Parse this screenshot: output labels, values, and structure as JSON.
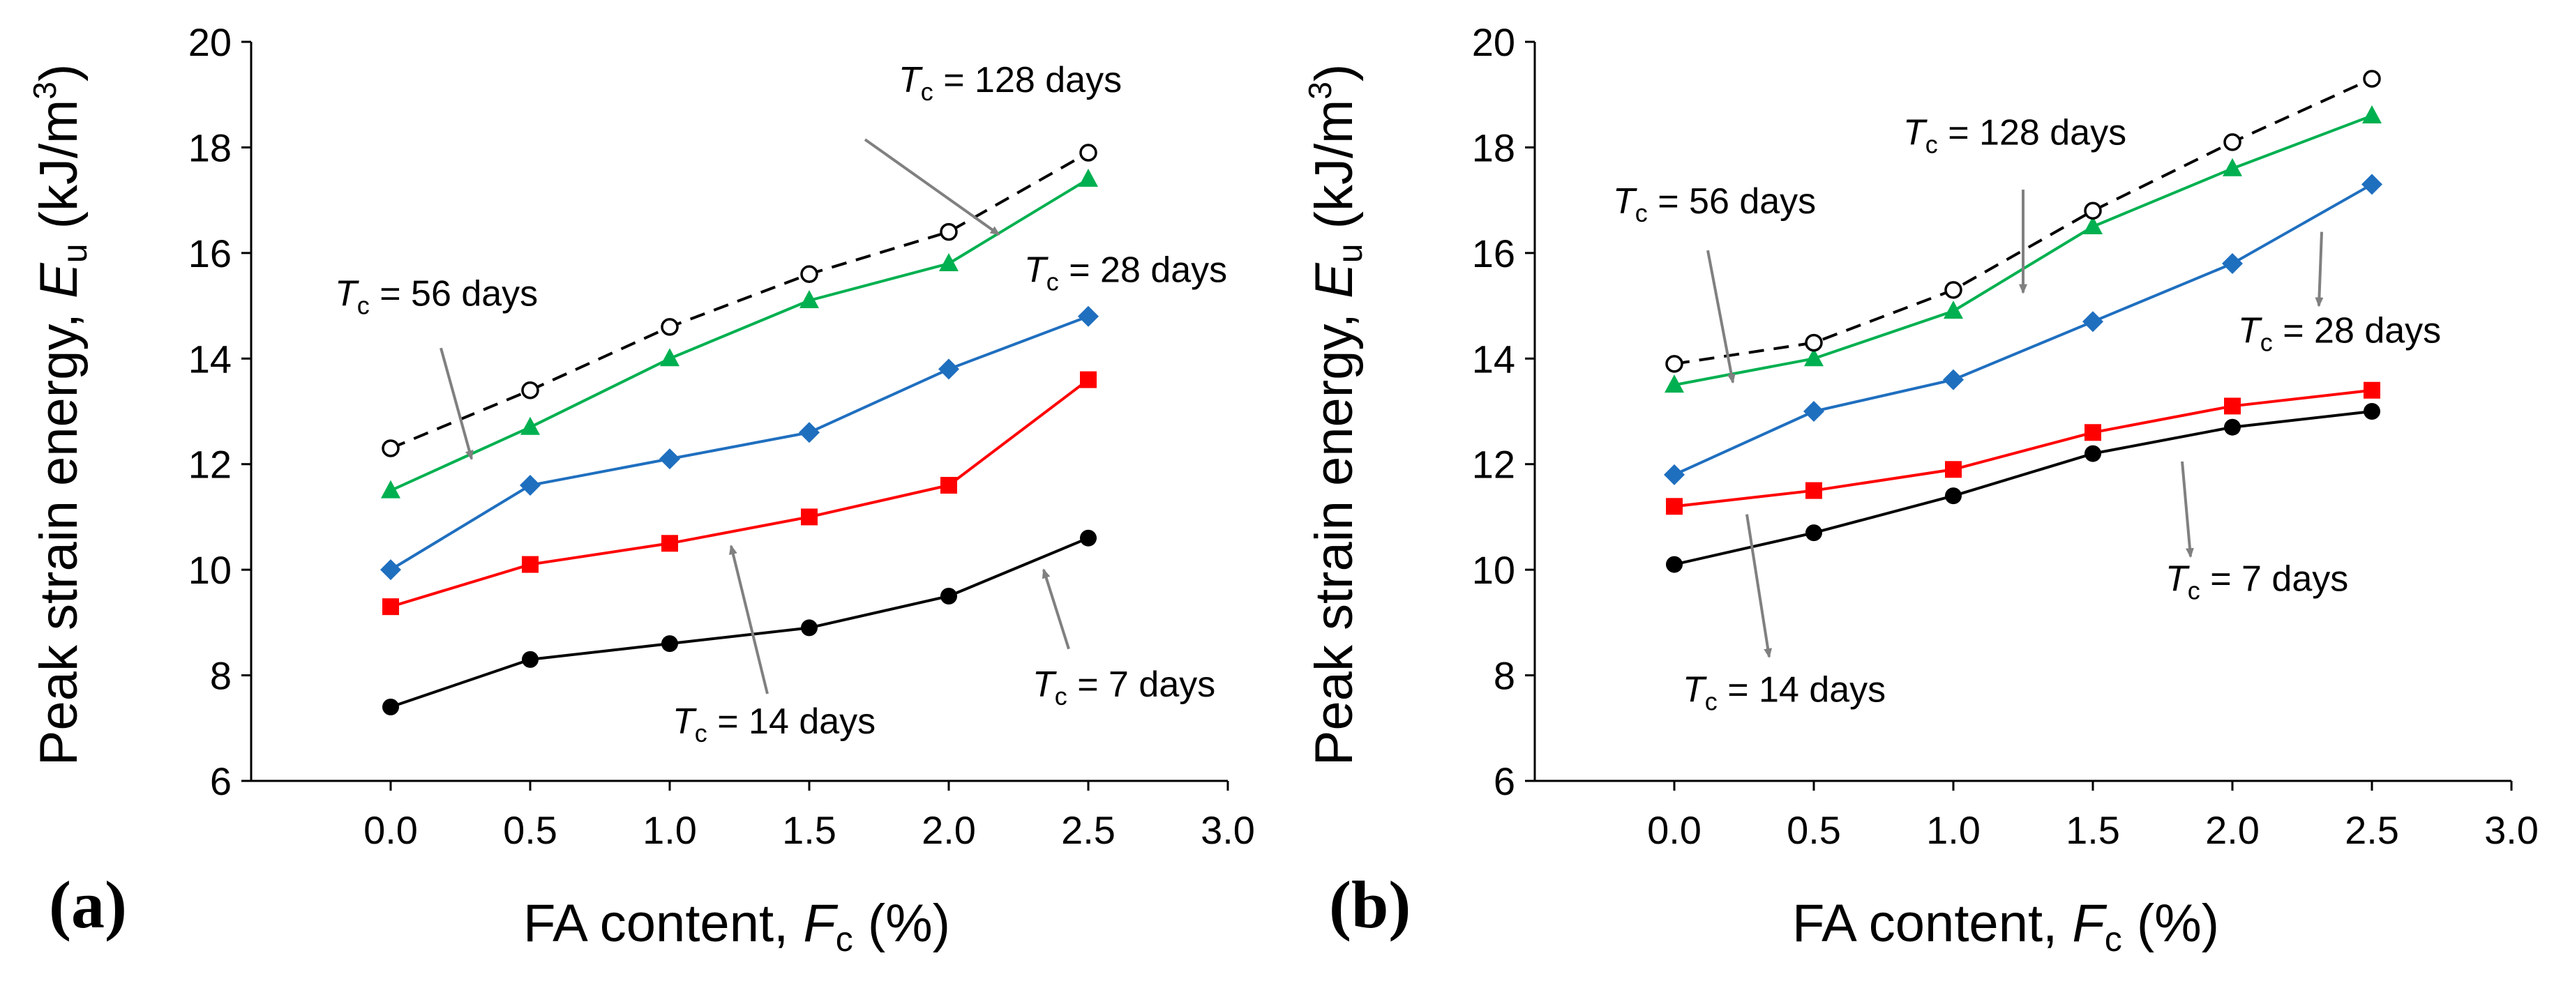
{
  "figure": {
    "panels": [
      "(a)",
      "(b)"
    ]
  },
  "colors": {
    "t7": "#000000",
    "t14": "#ff0000",
    "t28": "#1f6fbf",
    "t56": "#00b050",
    "t128": "#000000",
    "arrow": "#808080"
  },
  "chart_data": [
    {
      "type": "line",
      "panel_label": "(a)",
      "xlabel": "FA content, F_c (%)",
      "xlabel_parts": {
        "pre": "FA content, ",
        "var": "F",
        "sub": "c",
        "post": " (%)"
      },
      "ylabel": "Peak strain energy, E_u (kJ/m3)",
      "ylabel_parts": {
        "pre": "Peak strain energy, ",
        "var": "E",
        "sub": "u",
        "post": " (kJ/m",
        "sup": "3",
        "end": ")"
      },
      "xlim": [
        -0.5,
        3.0
      ],
      "ylim": [
        6,
        20
      ],
      "xticks": [
        "0.0",
        "0.5",
        "1.0",
        "1.5",
        "2.0",
        "2.5",
        "3.0"
      ],
      "xtick_values": [
        0.0,
        0.5,
        1.0,
        1.5,
        2.0,
        2.5,
        3.0
      ],
      "yticks": [
        "6",
        "8",
        "10",
        "12",
        "14",
        "16",
        "18",
        "20"
      ],
      "ytick_values": [
        6,
        8,
        10,
        12,
        14,
        16,
        18,
        20
      ],
      "x": [
        0.0,
        0.5,
        1.0,
        1.5,
        2.0,
        2.5
      ],
      "series": [
        {
          "name": "T_c = 7 days",
          "key": "t7",
          "marker": "circle-filled",
          "dashed": false,
          "values": [
            7.4,
            8.3,
            8.6,
            8.9,
            9.5,
            10.6
          ]
        },
        {
          "name": "T_c = 14 days",
          "key": "t14",
          "marker": "square",
          "dashed": false,
          "values": [
            9.3,
            10.1,
            10.5,
            11.0,
            11.6,
            13.6
          ]
        },
        {
          "name": "T_c = 28 days",
          "key": "t28",
          "marker": "diamond",
          "dashed": false,
          "values": [
            10.0,
            11.6,
            12.1,
            12.6,
            13.8,
            14.8
          ]
        },
        {
          "name": "T_c = 56 days",
          "key": "t56",
          "marker": "triangle",
          "dashed": false,
          "values": [
            11.5,
            12.7,
            14.0,
            15.1,
            15.8,
            17.4
          ]
        },
        {
          "name": "T_c = 128 days",
          "key": "t128",
          "marker": "circle-open",
          "dashed": true,
          "values": [
            12.3,
            13.4,
            14.6,
            15.6,
            16.4,
            17.9
          ]
        }
      ],
      "annotations": [
        {
          "var": "T",
          "sub": "c",
          "rest": " = 128 days",
          "text_at": [
            1.82,
            19.05
          ],
          "arrow_from": [
            1.7,
            18.15
          ],
          "arrow_to": [
            2.18,
            16.35
          ]
        },
        {
          "var": "T",
          "sub": "c",
          "rest": " = 56 days",
          "text_at": [
            -0.2,
            15.0
          ],
          "arrow_from": [
            0.18,
            14.2
          ],
          "arrow_to": [
            0.29,
            12.1
          ]
        },
        {
          "var": "T",
          "sub": "c",
          "rest": " = 28 days",
          "text_at": [
            2.27,
            15.45
          ],
          "arrow_from": null,
          "arrow_to": null
        },
        {
          "var": "T",
          "sub": "c",
          "rest": " = 14 days",
          "text_at": [
            1.01,
            6.9
          ],
          "arrow_from": [
            1.35,
            7.65
          ],
          "arrow_to": [
            1.22,
            10.45
          ]
        },
        {
          "var": "T",
          "sub": "c",
          "rest": " = 7 days",
          "text_at": [
            2.3,
            7.6
          ],
          "arrow_from": [
            2.43,
            8.5
          ],
          "arrow_to": [
            2.34,
            10.0
          ]
        }
      ]
    },
    {
      "type": "line",
      "panel_label": "(b)",
      "xlabel": "FA content, F_c (%)",
      "xlabel_parts": {
        "pre": "FA content, ",
        "var": "F",
        "sub": "c",
        "post": " (%)"
      },
      "ylabel": "Peak strain energy, E_u (kJ/m3)",
      "ylabel_parts": {
        "pre": "Peak strain energy, ",
        "var": "E",
        "sub": "u",
        "post": " (kJ/m",
        "sup": "3",
        "end": ")"
      },
      "xlim": [
        -0.5,
        3.0
      ],
      "ylim": [
        6,
        20
      ],
      "xticks": [
        "0.0",
        "0.5",
        "1.0",
        "1.5",
        "2.0",
        "2.5",
        "3.0"
      ],
      "xtick_values": [
        0.0,
        0.5,
        1.0,
        1.5,
        2.0,
        2.5,
        3.0
      ],
      "yticks": [
        "6",
        "8",
        "10",
        "12",
        "14",
        "16",
        "18",
        "20"
      ],
      "ytick_values": [
        6,
        8,
        10,
        12,
        14,
        16,
        18,
        20
      ],
      "x": [
        0.0,
        0.5,
        1.0,
        1.5,
        2.0,
        2.5
      ],
      "series": [
        {
          "name": "T_c = 7 days",
          "key": "t7",
          "marker": "circle-filled",
          "dashed": false,
          "values": [
            10.1,
            10.7,
            11.4,
            12.2,
            12.7,
            13.0
          ]
        },
        {
          "name": "T_c = 14 days",
          "key": "t14",
          "marker": "square",
          "dashed": false,
          "values": [
            11.2,
            11.5,
            11.9,
            12.6,
            13.1,
            13.4
          ]
        },
        {
          "name": "T_c = 28 days",
          "key": "t28",
          "marker": "diamond",
          "dashed": false,
          "values": [
            11.8,
            13.0,
            13.6,
            14.7,
            15.8,
            17.3
          ]
        },
        {
          "name": "T_c = 56 days",
          "key": "t56",
          "marker": "triangle",
          "dashed": false,
          "values": [
            13.5,
            14.0,
            14.9,
            16.5,
            17.6,
            18.6
          ]
        },
        {
          "name": "T_c = 128 days",
          "key": "t128",
          "marker": "circle-open",
          "dashed": true,
          "values": [
            13.9,
            14.3,
            15.3,
            16.8,
            18.1,
            19.3
          ]
        }
      ],
      "annotations": [
        {
          "var": "T",
          "sub": "c",
          "rest": " = 128 days",
          "text_at": [
            0.82,
            18.05
          ],
          "arrow_from": [
            1.25,
            17.2
          ],
          "arrow_to": [
            1.25,
            15.25
          ]
        },
        {
          "var": "T",
          "sub": "c",
          "rest": " = 56 days",
          "text_at": [
            -0.22,
            16.75
          ],
          "arrow_from": [
            0.12,
            16.05
          ],
          "arrow_to": [
            0.21,
            13.55
          ]
        },
        {
          "var": "T",
          "sub": "c",
          "rest": " = 28 days",
          "text_at": [
            2.02,
            14.3
          ],
          "arrow_from": [
            2.32,
            16.4
          ],
          "arrow_to": [
            2.31,
            15.0
          ]
        },
        {
          "var": "T",
          "sub": "c",
          "rest": " = 14 days",
          "text_at": [
            0.03,
            7.5
          ],
          "arrow_from": [
            0.26,
            11.05
          ],
          "arrow_to": [
            0.34,
            8.35
          ]
        },
        {
          "var": "T",
          "sub": "c",
          "rest": " = 7 days",
          "text_at": [
            1.76,
            9.6
          ],
          "arrow_from": [
            1.82,
            12.05
          ],
          "arrow_to": [
            1.85,
            10.25
          ]
        }
      ]
    }
  ]
}
